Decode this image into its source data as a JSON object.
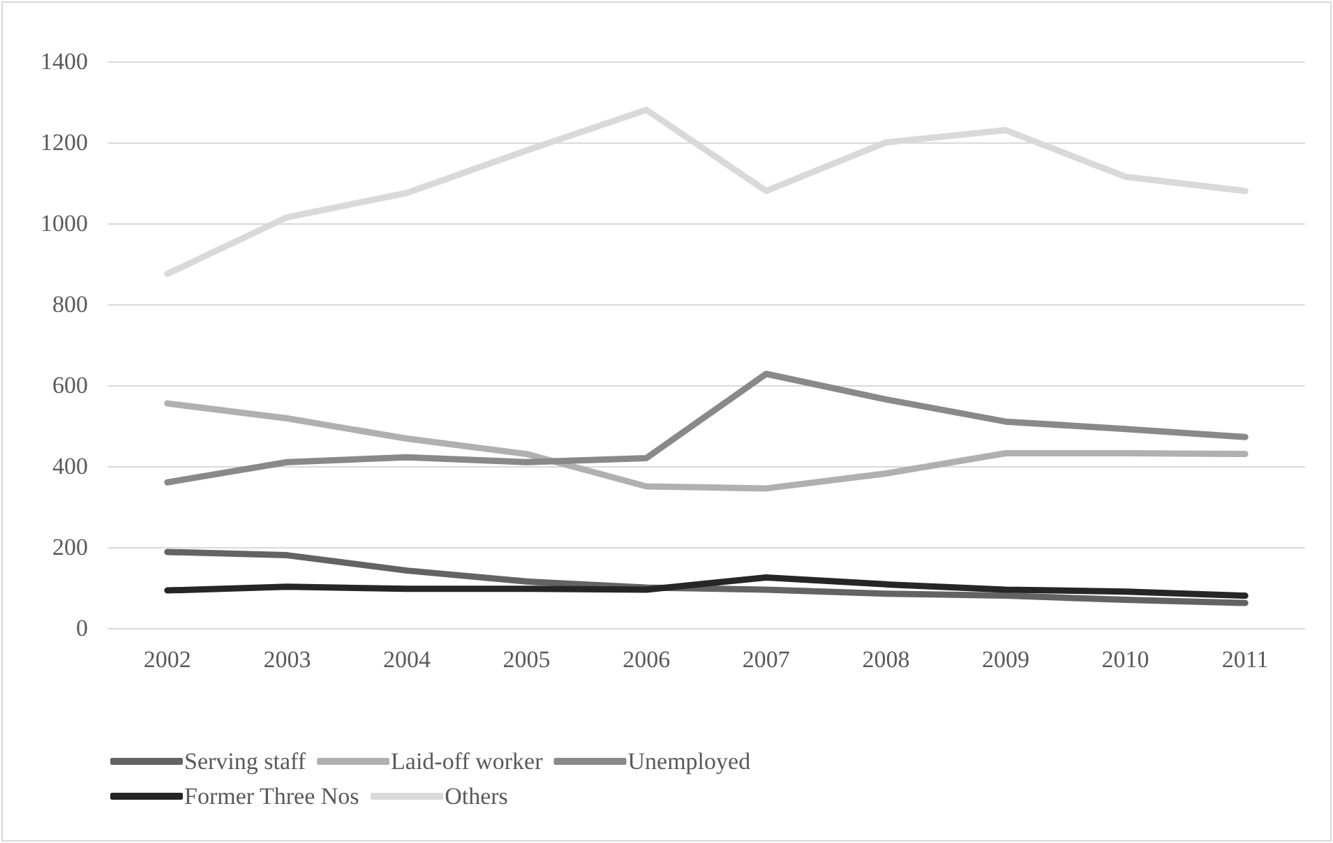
{
  "chart_data": {
    "type": "line",
    "categories": [
      "2002",
      "2003",
      "2004",
      "2005",
      "2006",
      "2007",
      "2008",
      "2009",
      "2010",
      "2011"
    ],
    "series": [
      {
        "name": "Serving staff",
        "color": "#636363",
        "values": [
          188,
          180,
          142,
          115,
          100,
          95,
          85,
          80,
          70,
          62
        ]
      },
      {
        "name": "Laid-off worker",
        "color": "#b0b0b0",
        "values": [
          555,
          518,
          468,
          430,
          350,
          345,
          382,
          432,
          432,
          430
        ]
      },
      {
        "name": "Unemployed",
        "color": "#898989",
        "values": [
          360,
          410,
          422,
          410,
          420,
          628,
          565,
          510,
          492,
          472
        ]
      },
      {
        "name": "Former Three Nos",
        "color": "#262626",
        "values": [
          93,
          102,
          97,
          97,
          95,
          125,
          108,
          95,
          90,
          80
        ]
      },
      {
        "name": "Others",
        "color": "#d9d9d9",
        "values": [
          875,
          1015,
          1075,
          1180,
          1280,
          1080,
          1200,
          1230,
          1115,
          1080
        ]
      }
    ],
    "ylim": [
      0,
      1400
    ],
    "yticks": [
      0,
      200,
      400,
      600,
      800,
      1000,
      1200,
      1400
    ],
    "grid": "y",
    "legend": "bottom",
    "marker": "none",
    "line_style": "solid"
  }
}
